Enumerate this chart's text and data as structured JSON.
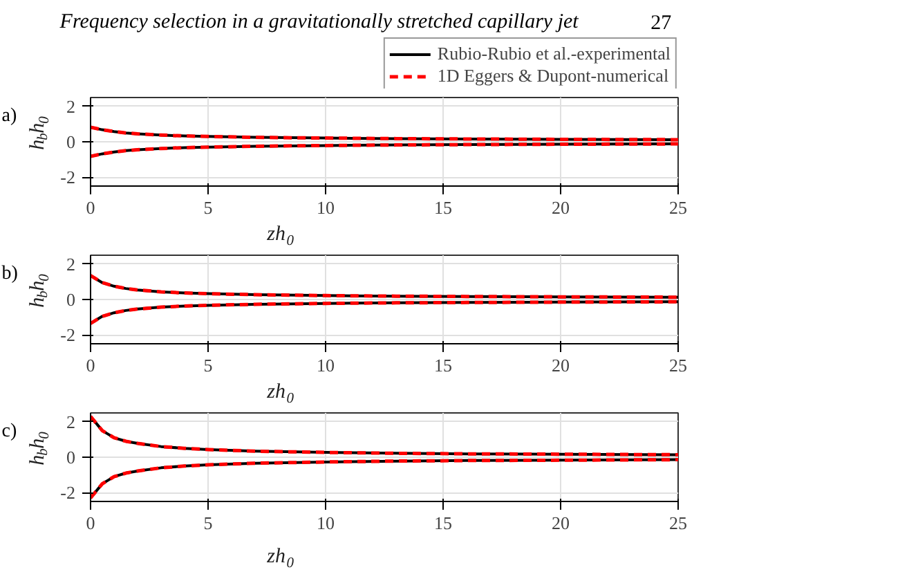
{
  "chart_data": [
    {
      "type": "line",
      "title": "Frequency selection in a gravitationally stretched capillary jet",
      "annotations": [
        "27",
        "a)"
      ],
      "xlabel": "zh$_{0}$",
      "ylabel": "h$_{b}$h$_{0}$",
      "x": [
        0,
        0.5,
        1,
        1.5,
        2,
        3,
        4,
        5,
        7,
        10,
        13,
        16,
        20,
        25
      ],
      "xlim": [
        0,
        25
      ],
      "xticks": [
        0,
        5,
        10,
        15,
        20,
        25
      ],
      "ylim": [
        -2.5,
        2.5
      ],
      "yticks": [
        -2,
        0,
        2
      ],
      "grid": true,
      "legend": "top right",
      "series": [
        {
          "name": "Rubio-Rubio et al.-experimental",
          "color": "#000000",
          "line_style": "solid",
          "values": [
            0.82,
            0.68,
            0.58,
            0.5,
            0.45,
            0.38,
            0.33,
            0.3,
            0.25,
            0.21,
            0.18,
            0.16,
            0.14,
            0.12
          ]
        },
        {
          "color": "#000000",
          "line_style": "solid",
          "values": [
            -0.82,
            -0.68,
            -0.58,
            -0.5,
            -0.45,
            -0.38,
            -0.33,
            -0.3,
            -0.25,
            -0.21,
            -0.18,
            -0.16,
            -0.14,
            -0.12
          ]
        },
        {
          "name": "1D Eggers & Dupont-numerical",
          "color": "#ff0000",
          "line_style": "dashed",
          "values": [
            0.82,
            0.68,
            0.58,
            0.5,
            0.45,
            0.38,
            0.33,
            0.3,
            0.25,
            0.21,
            0.18,
            0.16,
            0.14,
            0.12
          ]
        },
        {
          "color": "#ff0000",
          "line_style": "dashed",
          "values": [
            -0.82,
            -0.68,
            -0.58,
            -0.5,
            -0.45,
            -0.38,
            -0.33,
            -0.3,
            -0.25,
            -0.21,
            -0.18,
            -0.16,
            -0.14,
            -0.12
          ]
        }
      ]
    },
    {
      "type": "line",
      "annotations": [
        "b)"
      ],
      "xlabel": "zh$_{0}$",
      "ylabel": "h$_{b}$h$_{0}$",
      "x": [
        0,
        0.5,
        1,
        1.5,
        2,
        3,
        4,
        5,
        7,
        10,
        13,
        16,
        20,
        25
      ],
      "xlim": [
        0,
        25
      ],
      "xticks": [
        0,
        5,
        10,
        15,
        20,
        25
      ],
      "ylim": [
        -2.5,
        2.5
      ],
      "yticks": [
        -2,
        0,
        2
      ],
      "grid": true,
      "series": [
        {
          "color": "#000000",
          "line_style": "solid",
          "values": [
            1.35,
            0.95,
            0.75,
            0.62,
            0.54,
            0.43,
            0.37,
            0.33,
            0.27,
            0.22,
            0.19,
            0.17,
            0.15,
            0.13
          ]
        },
        {
          "color": "#000000",
          "line_style": "solid",
          "values": [
            -1.35,
            -0.95,
            -0.75,
            -0.62,
            -0.54,
            -0.43,
            -0.37,
            -0.33,
            -0.27,
            -0.22,
            -0.19,
            -0.17,
            -0.15,
            -0.13
          ]
        },
        {
          "color": "#ff0000",
          "line_style": "dashed",
          "values": [
            1.35,
            0.95,
            0.75,
            0.62,
            0.54,
            0.43,
            0.37,
            0.33,
            0.27,
            0.22,
            0.19,
            0.17,
            0.15,
            0.13
          ]
        },
        {
          "color": "#ff0000",
          "line_style": "dashed",
          "values": [
            -1.35,
            -0.95,
            -0.75,
            -0.62,
            -0.54,
            -0.43,
            -0.37,
            -0.33,
            -0.27,
            -0.22,
            -0.19,
            -0.17,
            -0.15,
            -0.13
          ]
        }
      ]
    },
    {
      "type": "line",
      "annotations": [
        "c)"
      ],
      "xlabel": "zh$_{0}$",
      "ylabel": "h$_{b}$h$_{0}$",
      "x": [
        0,
        0.5,
        1,
        1.5,
        2,
        3,
        4,
        5,
        7,
        10,
        13,
        16,
        20,
        25
      ],
      "xlim": [
        0,
        25
      ],
      "xticks": [
        0,
        5,
        10,
        15,
        20,
        25
      ],
      "ylim": [
        -2.5,
        2.5
      ],
      "yticks": [
        -2,
        0,
        2
      ],
      "grid": true,
      "series": [
        {
          "color": "#000000",
          "line_style": "solid",
          "values": [
            2.3,
            1.5,
            1.1,
            0.9,
            0.78,
            0.6,
            0.5,
            0.43,
            0.34,
            0.27,
            0.22,
            0.19,
            0.17,
            0.14
          ]
        },
        {
          "color": "#000000",
          "line_style": "solid",
          "values": [
            -2.3,
            -1.5,
            -1.1,
            -0.9,
            -0.78,
            -0.6,
            -0.5,
            -0.43,
            -0.34,
            -0.27,
            -0.22,
            -0.19,
            -0.17,
            -0.14
          ]
        },
        {
          "color": "#ff0000",
          "line_style": "dashed",
          "values": [
            2.3,
            1.5,
            1.1,
            0.9,
            0.78,
            0.6,
            0.5,
            0.43,
            0.34,
            0.27,
            0.22,
            0.19,
            0.17,
            0.14
          ]
        },
        {
          "color": "#ff0000",
          "line_style": "dashed",
          "values": [
            -2.3,
            -1.5,
            -1.1,
            -0.9,
            -0.78,
            -0.6,
            -0.5,
            -0.43,
            -0.34,
            -0.27,
            -0.22,
            -0.19,
            -0.17,
            -0.14
          ]
        }
      ]
    }
  ]
}
